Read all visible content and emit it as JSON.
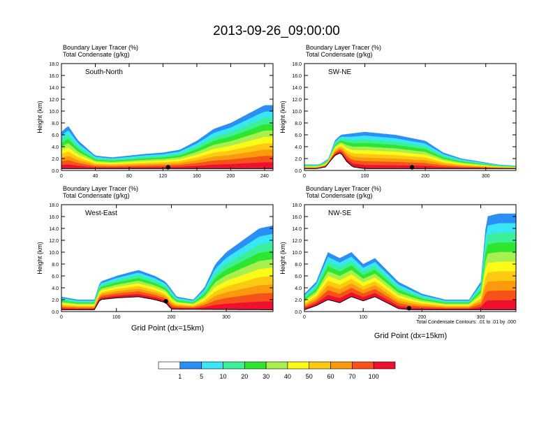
{
  "page_title": "2013-09-26_09:00:00",
  "panel_header_line1": "Boundary Layer Tracer   (%)",
  "panel_header_line2": "Total Condensate   (g/kg)",
  "ylabel": "Height (km)",
  "xlabel": "Grid Point (dx=15km)",
  "contour_note": "Total Condensate Contours: .01 to .01 by .000",
  "colors": {
    "fill_levels": [
      "#ffffff",
      "#2c8ff6",
      "#38e6f5",
      "#3cf09a",
      "#2fe62f",
      "#a8f050",
      "#fbfb17",
      "#fdc913",
      "#fc9a0e",
      "#f6521a",
      "#ef0f2f"
    ],
    "marker": "#000000",
    "contour": "#000000"
  },
  "legend": {
    "labels": [
      "1",
      "5",
      "10",
      "20",
      "30",
      "40",
      "50",
      "60",
      "70",
      "100"
    ]
  },
  "chart_data": [
    {
      "type": "filled-contour",
      "panel_label": "South-North",
      "xlim": [
        0,
        250
      ],
      "ylim": [
        0,
        18
      ],
      "xticks": [
        "0",
        "40",
        "80",
        "120",
        "160",
        "200",
        "240"
      ],
      "yticks": [
        "0.0",
        "2.0",
        "4.0",
        "6.0",
        "8.0",
        "10.0",
        "12.0",
        "14.0",
        "16.0",
        "18.0"
      ],
      "tracer_top_km": {
        "x": [
          0,
          8,
          20,
          40,
          60,
          80,
          100,
          120,
          140,
          160,
          180,
          200,
          220,
          240,
          250
        ],
        "y": [
          6.5,
          7.5,
          5.0,
          2.5,
          2.2,
          2.5,
          2.8,
          3.0,
          3.5,
          5.0,
          7.0,
          8.0,
          9.5,
          11.0,
          11.0
        ]
      },
      "terrain_km": {
        "x": [
          0,
          250
        ],
        "y": [
          0.3,
          0.3
        ]
      },
      "marker_x": 126
    },
    {
      "type": "filled-contour",
      "panel_label": "SW-NE",
      "xlim": [
        0,
        350
      ],
      "ylim": [
        0,
        18
      ],
      "xticks": [
        "0",
        "100",
        "200",
        "300"
      ],
      "yticks": [
        "0.0",
        "2.0",
        "4.0",
        "6.0",
        "8.0",
        "10.0",
        "12.0",
        "14.0",
        "16.0",
        "18.0"
      ],
      "tracer_top_km": {
        "x": [
          0,
          25,
          40,
          50,
          60,
          100,
          150,
          200,
          230,
          260,
          290,
          320,
          350
        ],
        "y": [
          1.0,
          1.0,
          2.0,
          5.0,
          6.0,
          6.5,
          6.0,
          5.0,
          3.0,
          2.0,
          1.5,
          1.0,
          0.8
        ]
      },
      "terrain_km": {
        "x": [
          0,
          20,
          35,
          50,
          60,
          70,
          80,
          100,
          350
        ],
        "y": [
          0.3,
          0.3,
          0.6,
          2.5,
          3.0,
          1.5,
          0.6,
          0.3,
          0.3
        ]
      },
      "marker_x": 178
    },
    {
      "type": "filled-contour",
      "panel_label": "West-East",
      "xlim": [
        0,
        385
      ],
      "ylim": [
        0,
        18
      ],
      "xticks": [
        "0",
        "100",
        "200",
        "300"
      ],
      "yticks": [
        "0.0",
        "2.0",
        "4.0",
        "6.0",
        "8.0",
        "10.0",
        "12.0",
        "14.0",
        "16.0",
        "18.0"
      ],
      "tracer_top_km": {
        "x": [
          0,
          30,
          60,
          70,
          100,
          140,
          170,
          190,
          210,
          240,
          260,
          280,
          300,
          330,
          360,
          385
        ],
        "y": [
          2.5,
          2.0,
          2.0,
          5.0,
          6.0,
          7.0,
          6.0,
          5.0,
          2.5,
          2.0,
          4.0,
          8.0,
          10.0,
          12.0,
          14.0,
          14.5
        ]
      },
      "terrain_km": {
        "x": [
          0,
          60,
          70,
          100,
          140,
          170,
          190,
          200,
          385
        ],
        "y": [
          0.3,
          0.3,
          2.0,
          2.3,
          2.5,
          2.0,
          1.5,
          0.4,
          0.3
        ]
      },
      "marker_x": 190
    },
    {
      "type": "filled-contour",
      "panel_label": "NW-SE",
      "xlim": [
        0,
        360
      ],
      "ylim": [
        0,
        18
      ],
      "xticks": [
        "0",
        "100",
        "200",
        "300"
      ],
      "yticks": [
        "0.0",
        "2.0",
        "4.0",
        "6.0",
        "8.0",
        "10.0",
        "12.0",
        "14.0",
        "16.0",
        "18.0"
      ],
      "tracer_top_km": {
        "x": [
          0,
          20,
          40,
          60,
          80,
          100,
          120,
          140,
          160,
          180,
          200,
          240,
          280,
          300,
          310,
          330,
          360
        ],
        "y": [
          3.0,
          5.0,
          10.0,
          9.0,
          10.0,
          8.0,
          9.0,
          7.0,
          5.0,
          4.0,
          3.0,
          2.0,
          2.0,
          5.0,
          16.0,
          16.5,
          16.5
        ]
      },
      "terrain_km": {
        "x": [
          0,
          20,
          40,
          60,
          80,
          100,
          120,
          140,
          160,
          180,
          360
        ],
        "y": [
          0.3,
          1.0,
          2.0,
          1.5,
          2.5,
          1.8,
          2.5,
          1.5,
          0.5,
          0.3,
          0.3
        ]
      },
      "marker_x": 178
    }
  ]
}
